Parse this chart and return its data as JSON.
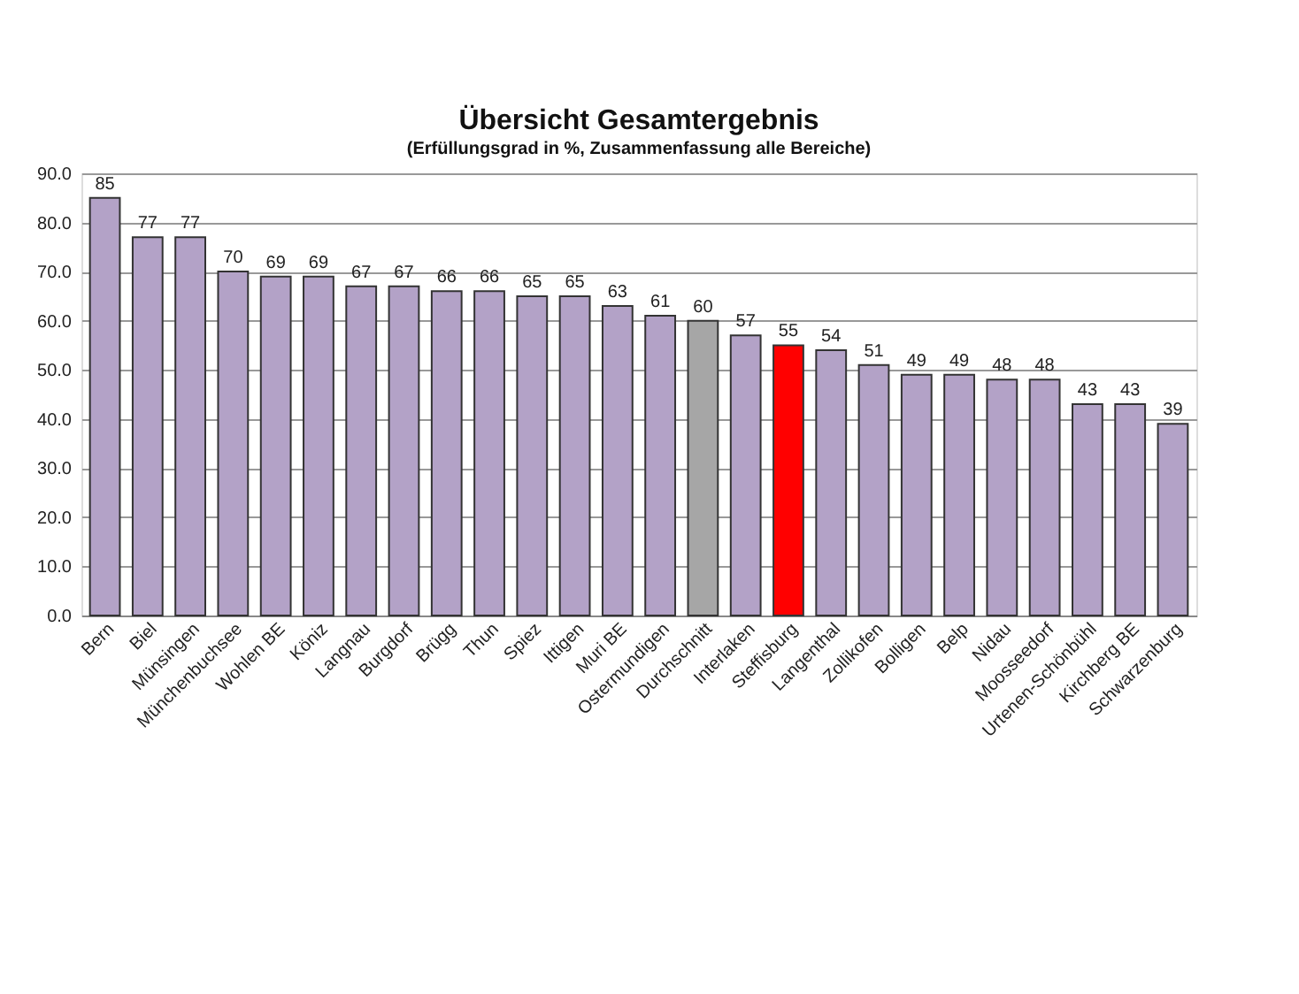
{
  "chart_data": {
    "type": "bar",
    "title": "Übersicht Gesamtergebnis",
    "subtitle": "(Erfüllungsgrad in %, Zusammenfassung alle Bereiche)",
    "categories": [
      "Bern",
      "Biel",
      "Münsingen",
      "Münchenbuchsee",
      "Wohlen BE",
      "Köniz",
      "Langnau",
      "Burgdorf",
      "Brügg",
      "Thun",
      "Spiez",
      "Ittigen",
      "Muri BE",
      "Ostermundigen",
      "Durchschnitt",
      "Interlaken",
      "Steffisburg",
      "Langenthal",
      "Zollikofen",
      "Bolligen",
      "Belp",
      "Nidau",
      "Moosseedorf",
      "Urtenen-Schönbühl",
      "Kirchberg BE",
      "Schwarzenburg"
    ],
    "values": [
      85,
      77,
      77,
      70,
      69,
      69,
      67,
      67,
      66,
      66,
      65,
      65,
      63,
      61,
      60,
      57,
      55,
      54,
      51,
      49,
      49,
      48,
      48,
      43,
      43,
      39
    ],
    "colors": [
      "#b3a2c7",
      "#b3a2c7",
      "#b3a2c7",
      "#b3a2c7",
      "#b3a2c7",
      "#b3a2c7",
      "#b3a2c7",
      "#b3a2c7",
      "#b3a2c7",
      "#b3a2c7",
      "#b3a2c7",
      "#b3a2c7",
      "#b3a2c7",
      "#b3a2c7",
      "#a6a6a6",
      "#b3a2c7",
      "#ff0000",
      "#b3a2c7",
      "#b3a2c7",
      "#b3a2c7",
      "#b3a2c7",
      "#b3a2c7",
      "#b3a2c7",
      "#b3a2c7",
      "#b3a2c7",
      "#b3a2c7"
    ],
    "ylim": [
      0,
      90
    ],
    "yticks": [
      {
        "value": 0,
        "label": "0.0"
      },
      {
        "value": 10,
        "label": "10.0"
      },
      {
        "value": 20,
        "label": "20.0"
      },
      {
        "value": 30,
        "label": "30.0"
      },
      {
        "value": 40,
        "label": "40.0"
      },
      {
        "value": 50,
        "label": "50.0"
      },
      {
        "value": 60,
        "label": "60.0"
      },
      {
        "value": 70,
        "label": "70.0"
      },
      {
        "value": 80,
        "label": "80.0"
      },
      {
        "value": 90,
        "label": "90.0"
      }
    ],
    "data_labels": true,
    "grid": "y"
  }
}
